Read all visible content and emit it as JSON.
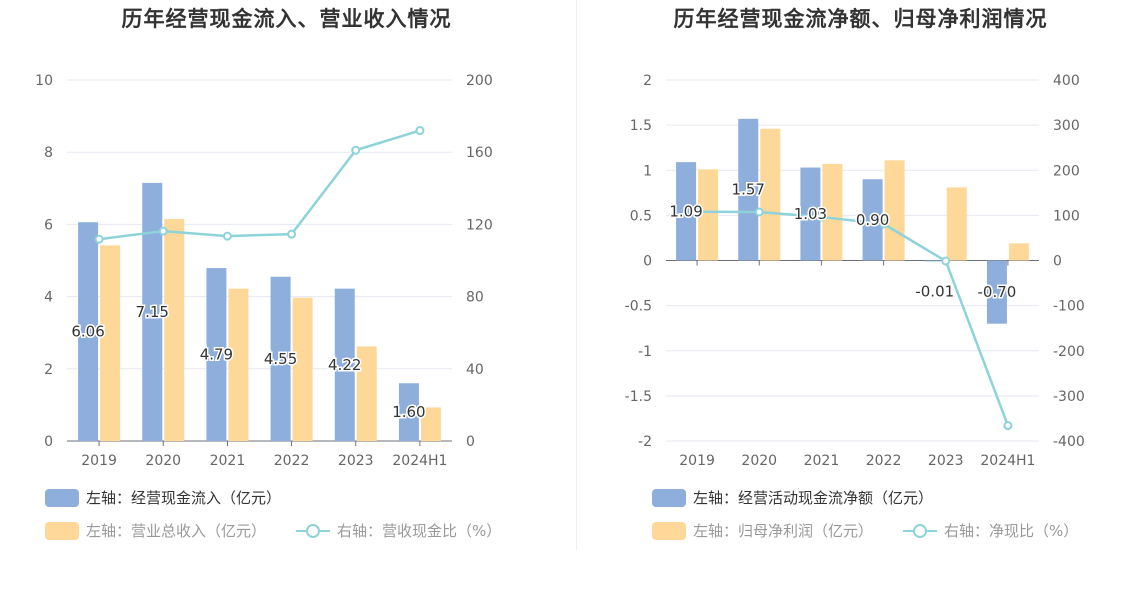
{
  "charts": [
    {
      "title": "历年经营现金流入、营业收入情况",
      "legend": {
        "bar1": "左轴：经营现金流入（亿元）",
        "bar2": "左轴：营业总收入（亿元）",
        "line": "右轴：营收现金比（%）"
      }
    },
    {
      "title": "历年经营现金流净额、归母净利润情况",
      "legend": {
        "bar1": "左轴：经营活动现金流净额（亿元）",
        "bar2": "左轴：归母净利润（亿元）",
        "line": "右轴：净现比（%）"
      }
    }
  ],
  "colors": {
    "bar1": "#8eaedc",
    "bar2": "#fed898",
    "line": "#8dd3d9"
  },
  "chart_data": [
    {
      "type": "bar",
      "categories": [
        "2019",
        "2020",
        "2021",
        "2022",
        "2023",
        "2024H1"
      ],
      "series": [
        {
          "name": "左轴：经营现金流入（亿元）",
          "axis": "left",
          "values": [
            6.06,
            7.15,
            4.79,
            4.55,
            4.22,
            1.6
          ],
          "labels": [
            "6.06",
            "7.15",
            "4.79",
            "4.55",
            "4.22",
            "1.60"
          ]
        },
        {
          "name": "左轴：营业总收入（亿元）",
          "axis": "left",
          "values": [
            5.42,
            6.15,
            4.22,
            3.97,
            2.62,
            0.93
          ]
        },
        {
          "name": "右轴：营收现金比（%）",
          "axis": "right",
          "type": "line",
          "values": [
            111.8,
            116.3,
            113.5,
            114.6,
            161.1,
            172.0
          ]
        }
      ],
      "ylim_left": [
        0,
        10
      ],
      "yticks_left": [
        "0",
        "2",
        "4",
        "6",
        "8",
        "10"
      ],
      "ylim_right": [
        0,
        200
      ],
      "yticks_right": [
        "0",
        "40",
        "80",
        "120",
        "160",
        "200"
      ]
    },
    {
      "type": "bar",
      "categories": [
        "2019",
        "2020",
        "2021",
        "2022",
        "2023",
        "2024H1"
      ],
      "series": [
        {
          "name": "左轴：经营活动现金流净额（亿元）",
          "axis": "left",
          "values": [
            1.09,
            1.57,
            1.03,
            0.9,
            -0.01,
            -0.7
          ],
          "labels": [
            "1.09",
            "1.57",
            "1.03",
            "0.90",
            "-0.01",
            "-0.70"
          ]
        },
        {
          "name": "左轴：归母净利润（亿元）",
          "axis": "left",
          "values": [
            1.01,
            1.46,
            1.07,
            1.11,
            0.81,
            0.19
          ]
        },
        {
          "name": "右轴：净现比（%）",
          "axis": "right",
          "type": "line",
          "values": [
            107.9,
            107.5,
            96.3,
            81.1,
            -1.2,
            -366.0
          ]
        }
      ],
      "ylim_left": [
        -2,
        2
      ],
      "yticks_left": [
        "-2",
        "-1.5",
        "-1",
        "-0.5",
        "0",
        "0.5",
        "1",
        "1.5",
        "2"
      ],
      "ylim_right": [
        -400,
        400
      ],
      "yticks_right": [
        "-400",
        "-300",
        "-200",
        "-100",
        "0",
        "100",
        "200",
        "300",
        "400"
      ]
    }
  ]
}
